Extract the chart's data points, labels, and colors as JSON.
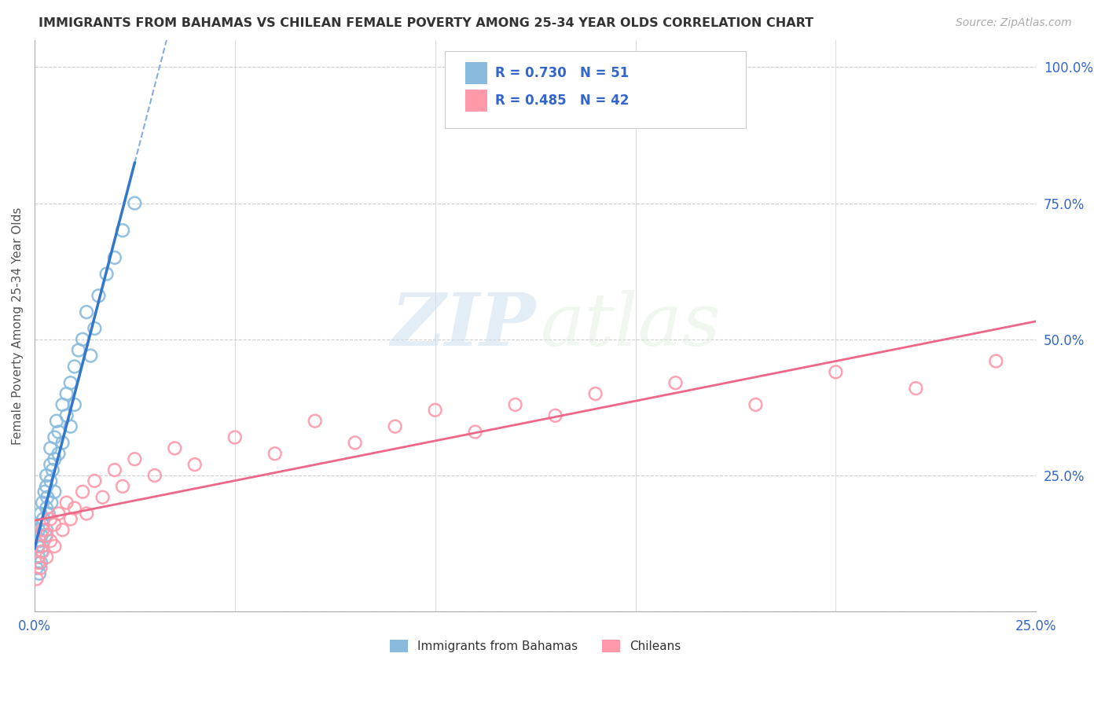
{
  "title": "IMMIGRANTS FROM BAHAMAS VS CHILEAN FEMALE POVERTY AMONG 25-34 YEAR OLDS CORRELATION CHART",
  "source_text": "Source: ZipAtlas.com",
  "ylabel": "Female Poverty Among 25-34 Year Olds",
  "xlim": [
    0.0,
    0.25
  ],
  "ylim": [
    0.0,
    1.05
  ],
  "y_ticks_right": [
    0.0,
    0.25,
    0.5,
    0.75,
    1.0
  ],
  "y_tick_labels_right": [
    "",
    "25.0%",
    "50.0%",
    "75.0%",
    "100.0%"
  ],
  "r_bahamas": 0.73,
  "n_bahamas": 51,
  "r_chilean": 0.485,
  "n_chilean": 42,
  "color_bahamas": "#88BBDD",
  "color_chilean": "#FF99AA",
  "color_bahamas_line": "#3377CC",
  "color_chilean_line": "#EE6688",
  "watermark_zip": "ZIP",
  "watermark_atlas": "atlas",
  "legend_label_bahamas": "Immigrants from Bahamas",
  "legend_label_chilean": "Chileans",
  "background_color": "#FFFFFF",
  "bahamas_x": [
    0.0005,
    0.0008,
    0.001,
    0.001,
    0.0012,
    0.0013,
    0.0015,
    0.0016,
    0.0017,
    0.0018,
    0.002,
    0.002,
    0.002,
    0.0022,
    0.0025,
    0.0028,
    0.003,
    0.003,
    0.003,
    0.003,
    0.0032,
    0.0035,
    0.004,
    0.004,
    0.004,
    0.0042,
    0.0045,
    0.005,
    0.005,
    0.005,
    0.0055,
    0.006,
    0.006,
    0.007,
    0.007,
    0.008,
    0.008,
    0.009,
    0.009,
    0.01,
    0.01,
    0.011,
    0.012,
    0.013,
    0.014,
    0.015,
    0.016,
    0.018,
    0.02,
    0.022,
    0.025
  ],
  "bahamas_y": [
    0.08,
    0.12,
    0.1,
    0.15,
    0.07,
    0.13,
    0.18,
    0.09,
    0.14,
    0.11,
    0.16,
    0.12,
    0.2,
    0.17,
    0.22,
    0.14,
    0.19,
    0.23,
    0.15,
    0.25,
    0.21,
    0.18,
    0.27,
    0.24,
    0.3,
    0.2,
    0.26,
    0.32,
    0.28,
    0.22,
    0.35,
    0.33,
    0.29,
    0.38,
    0.31,
    0.4,
    0.36,
    0.42,
    0.34,
    0.45,
    0.38,
    0.48,
    0.5,
    0.55,
    0.47,
    0.52,
    0.58,
    0.62,
    0.65,
    0.7,
    0.75
  ],
  "chilean_x": [
    0.0005,
    0.001,
    0.001,
    0.0015,
    0.002,
    0.002,
    0.003,
    0.003,
    0.004,
    0.004,
    0.005,
    0.005,
    0.006,
    0.007,
    0.008,
    0.009,
    0.01,
    0.012,
    0.013,
    0.015,
    0.017,
    0.02,
    0.022,
    0.025,
    0.03,
    0.035,
    0.04,
    0.05,
    0.06,
    0.07,
    0.08,
    0.09,
    0.1,
    0.11,
    0.12,
    0.13,
    0.14,
    0.16,
    0.18,
    0.2,
    0.22,
    0.24
  ],
  "chilean_y": [
    0.06,
    0.09,
    0.12,
    0.08,
    0.11,
    0.15,
    0.1,
    0.14,
    0.13,
    0.17,
    0.16,
    0.12,
    0.18,
    0.15,
    0.2,
    0.17,
    0.19,
    0.22,
    0.18,
    0.24,
    0.21,
    0.26,
    0.23,
    0.28,
    0.25,
    0.3,
    0.27,
    0.32,
    0.29,
    0.35,
    0.31,
    0.34,
    0.37,
    0.33,
    0.38,
    0.36,
    0.4,
    0.42,
    0.38,
    0.44,
    0.41,
    0.46
  ]
}
